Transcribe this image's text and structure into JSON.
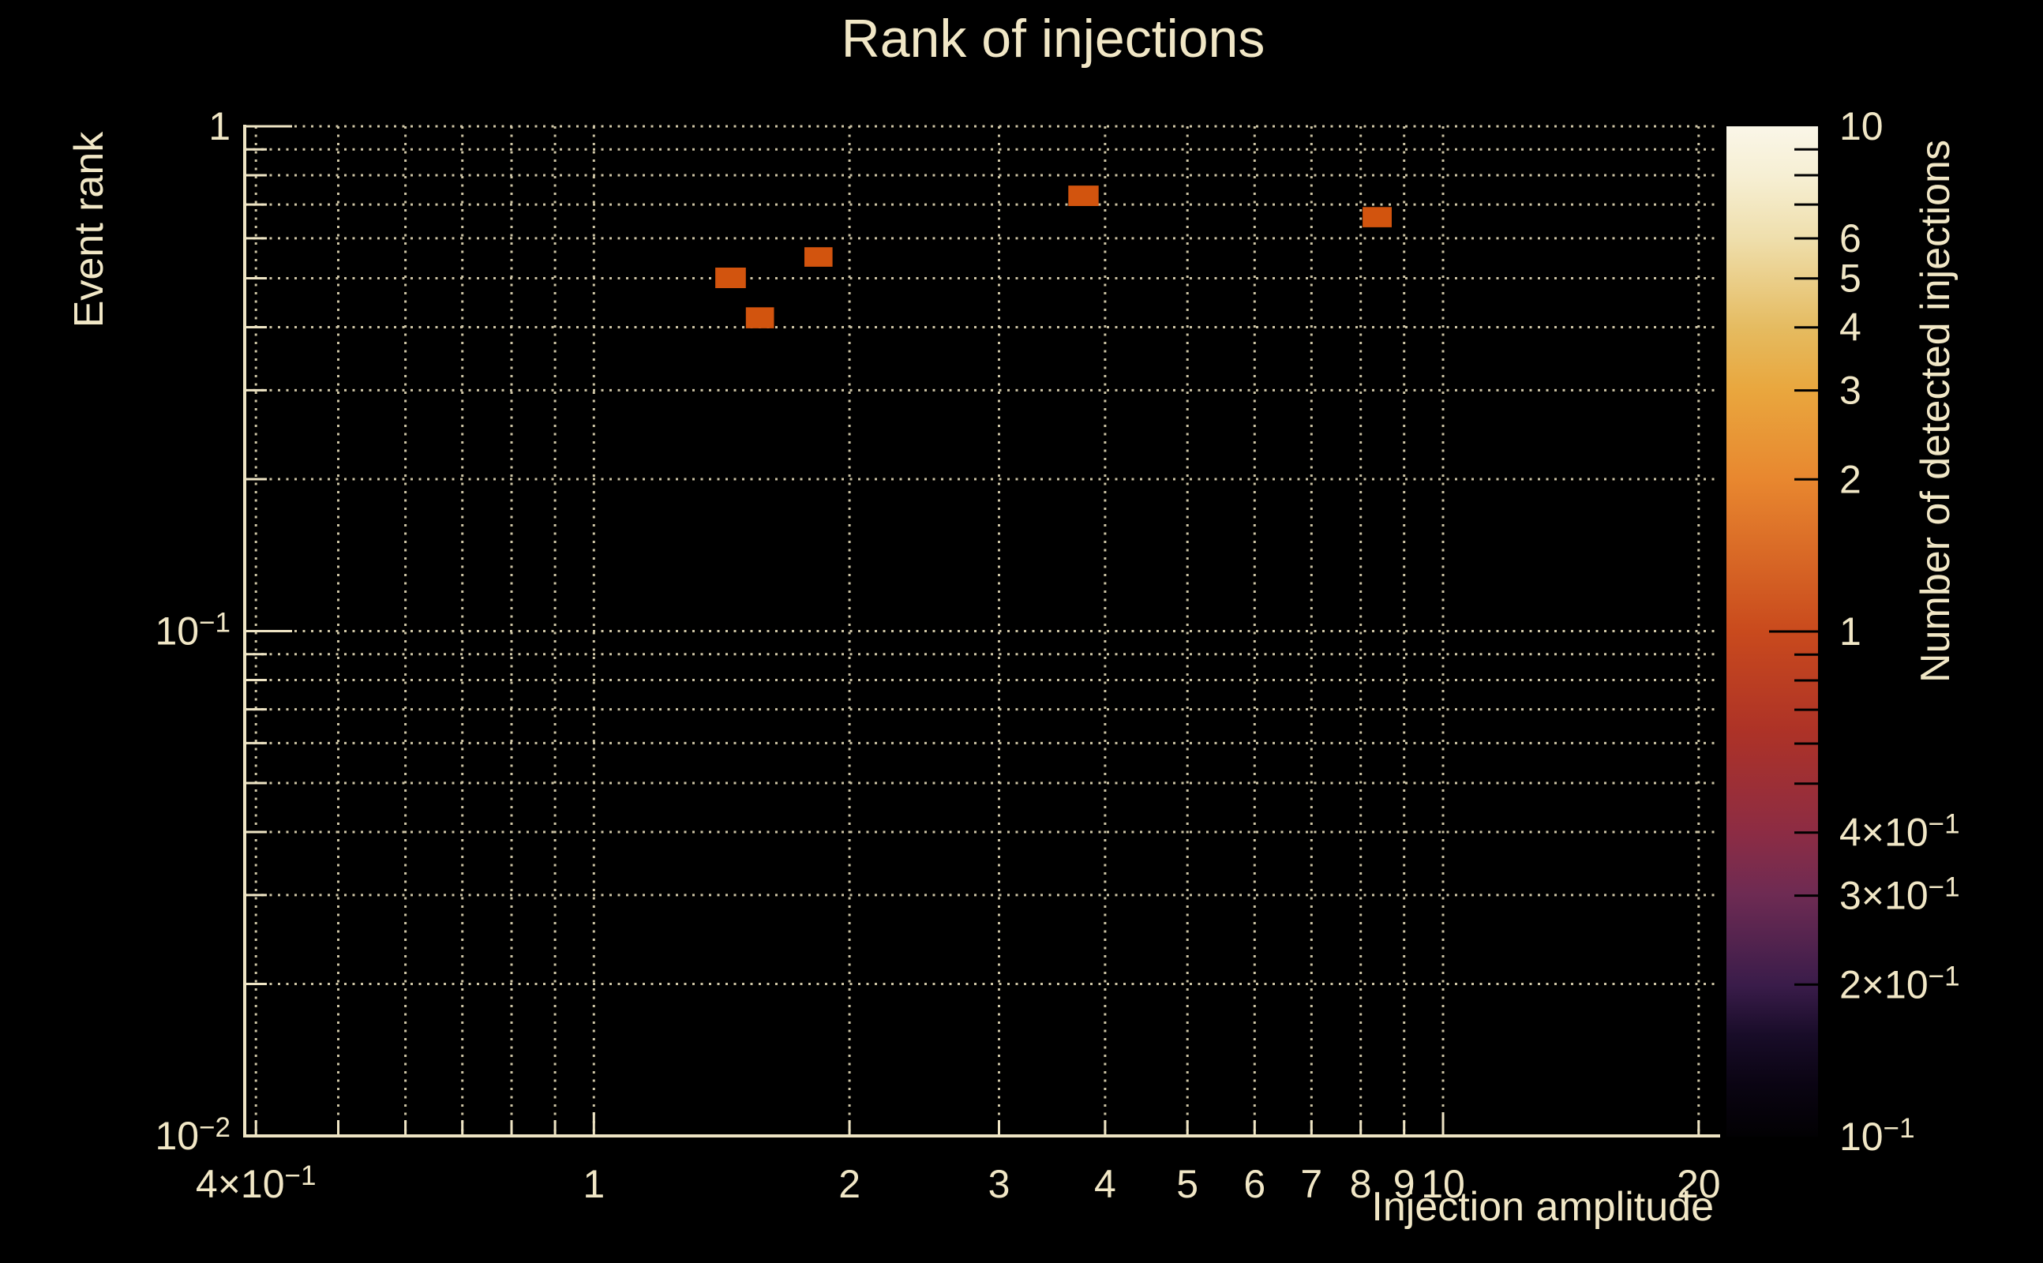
{
  "chart": {
    "background": "#000000",
    "text_color": "#f1e7c6",
    "grid_color": "#cfc6a6",
    "spine_color": "#eee4c4"
  },
  "chart_data": {
    "type": "heatmap",
    "title": "Rank of injections",
    "xlabel": "Injection amplitude",
    "ylabel": "Event rank",
    "colorbar_label": "Number of detected injections",
    "xscale": "log",
    "yscale": "log",
    "xlim": [
      0.388,
      21.2
    ],
    "ylim": [
      0.01,
      1
    ],
    "grid": true,
    "x_gridlines": [
      0.4,
      0.5,
      0.6,
      0.7,
      0.8,
      0.9,
      1,
      2,
      3,
      4,
      5,
      6,
      7,
      8,
      9,
      10,
      20
    ],
    "y_gridlines": [
      1,
      0.9,
      0.8,
      0.7,
      0.6,
      0.5,
      0.4,
      0.3,
      0.2,
      0.1,
      0.09,
      0.08,
      0.07,
      0.06,
      0.05,
      0.04,
      0.03,
      0.02,
      0.01
    ],
    "x_major": [
      1,
      10
    ],
    "y_major": [
      1,
      0.1,
      0.01
    ],
    "x_ticks": [
      {
        "v": 0.4,
        "t": "4×10",
        "sup": "−1"
      },
      {
        "v": 1,
        "t": "1"
      },
      {
        "v": 2,
        "t": "2"
      },
      {
        "v": 3,
        "t": "3"
      },
      {
        "v": 4,
        "t": "4"
      },
      {
        "v": 5,
        "t": "5"
      },
      {
        "v": 6,
        "t": "6"
      },
      {
        "v": 7,
        "t": "7"
      },
      {
        "v": 8,
        "t": "8"
      },
      {
        "v": 9,
        "t": "9"
      },
      {
        "v": 10,
        "t": "10"
      },
      {
        "v": 20,
        "t": "20"
      }
    ],
    "y_ticks": [
      {
        "v": 1,
        "t": "1"
      },
      {
        "v": 0.1,
        "t": "10",
        "sup": "−1"
      },
      {
        "v": 0.01,
        "t": "10",
        "sup": "−2"
      }
    ],
    "bins": [
      {
        "x0": 1.39,
        "x1": 1.51,
        "y0": 0.478,
        "y1": 0.525,
        "count": 1
      },
      {
        "x0": 1.51,
        "x1": 1.63,
        "y0": 0.398,
        "y1": 0.438,
        "count": 1
      },
      {
        "x0": 1.77,
        "x1": 1.91,
        "y0": 0.527,
        "y1": 0.576,
        "count": 1
      },
      {
        "x0": 3.62,
        "x1": 3.93,
        "y0": 0.695,
        "y1": 0.763,
        "count": 1
      },
      {
        "x0": 8.04,
        "x1": 8.7,
        "y0": 0.631,
        "y1": 0.692,
        "count": 1
      }
    ],
    "bin_value_color": "#d2540e",
    "colorbar": {
      "range": [
        0.1,
        10
      ],
      "scale": "log",
      "ticks_minor": [
        9,
        8,
        7,
        6,
        5,
        4,
        3,
        2,
        0.9,
        0.8,
        0.7,
        0.6,
        0.5,
        0.4,
        0.3,
        0.2
      ],
      "ticks_major": [
        1
      ],
      "tick_labels": [
        {
          "v": 10,
          "t": "10"
        },
        {
          "v": 6,
          "t": "6"
        },
        {
          "v": 5,
          "t": "5"
        },
        {
          "v": 4,
          "t": "4"
        },
        {
          "v": 3,
          "t": "3"
        },
        {
          "v": 2,
          "t": "2"
        },
        {
          "v": 1,
          "t": "1"
        },
        {
          "v": 0.4,
          "t": "4×10",
          "sup": "−1"
        },
        {
          "v": 0.3,
          "t": "3×10",
          "sup": "−1"
        },
        {
          "v": 0.2,
          "t": "2×10",
          "sup": "−1"
        },
        {
          "v": 0.1,
          "t": "10",
          "sup": "−1"
        }
      ],
      "gradient_stops": [
        [
          0.0,
          "#020103"
        ],
        [
          0.05,
          "#0a0412"
        ],
        [
          0.1,
          "#180c28"
        ],
        [
          0.15,
          "#3a1c4a"
        ],
        [
          0.24,
          "#6e2b53"
        ],
        [
          0.3,
          "#8c2c44"
        ],
        [
          0.4,
          "#ad3227"
        ],
        [
          0.5,
          "#c94a1d"
        ],
        [
          0.65,
          "#e8872f"
        ],
        [
          0.74,
          "#e9a73e"
        ],
        [
          0.8,
          "#e5bb60"
        ],
        [
          0.89,
          "#efdfad"
        ],
        [
          0.95,
          "#f6efd3"
        ],
        [
          1.0,
          "#faf6e8"
        ]
      ]
    }
  }
}
